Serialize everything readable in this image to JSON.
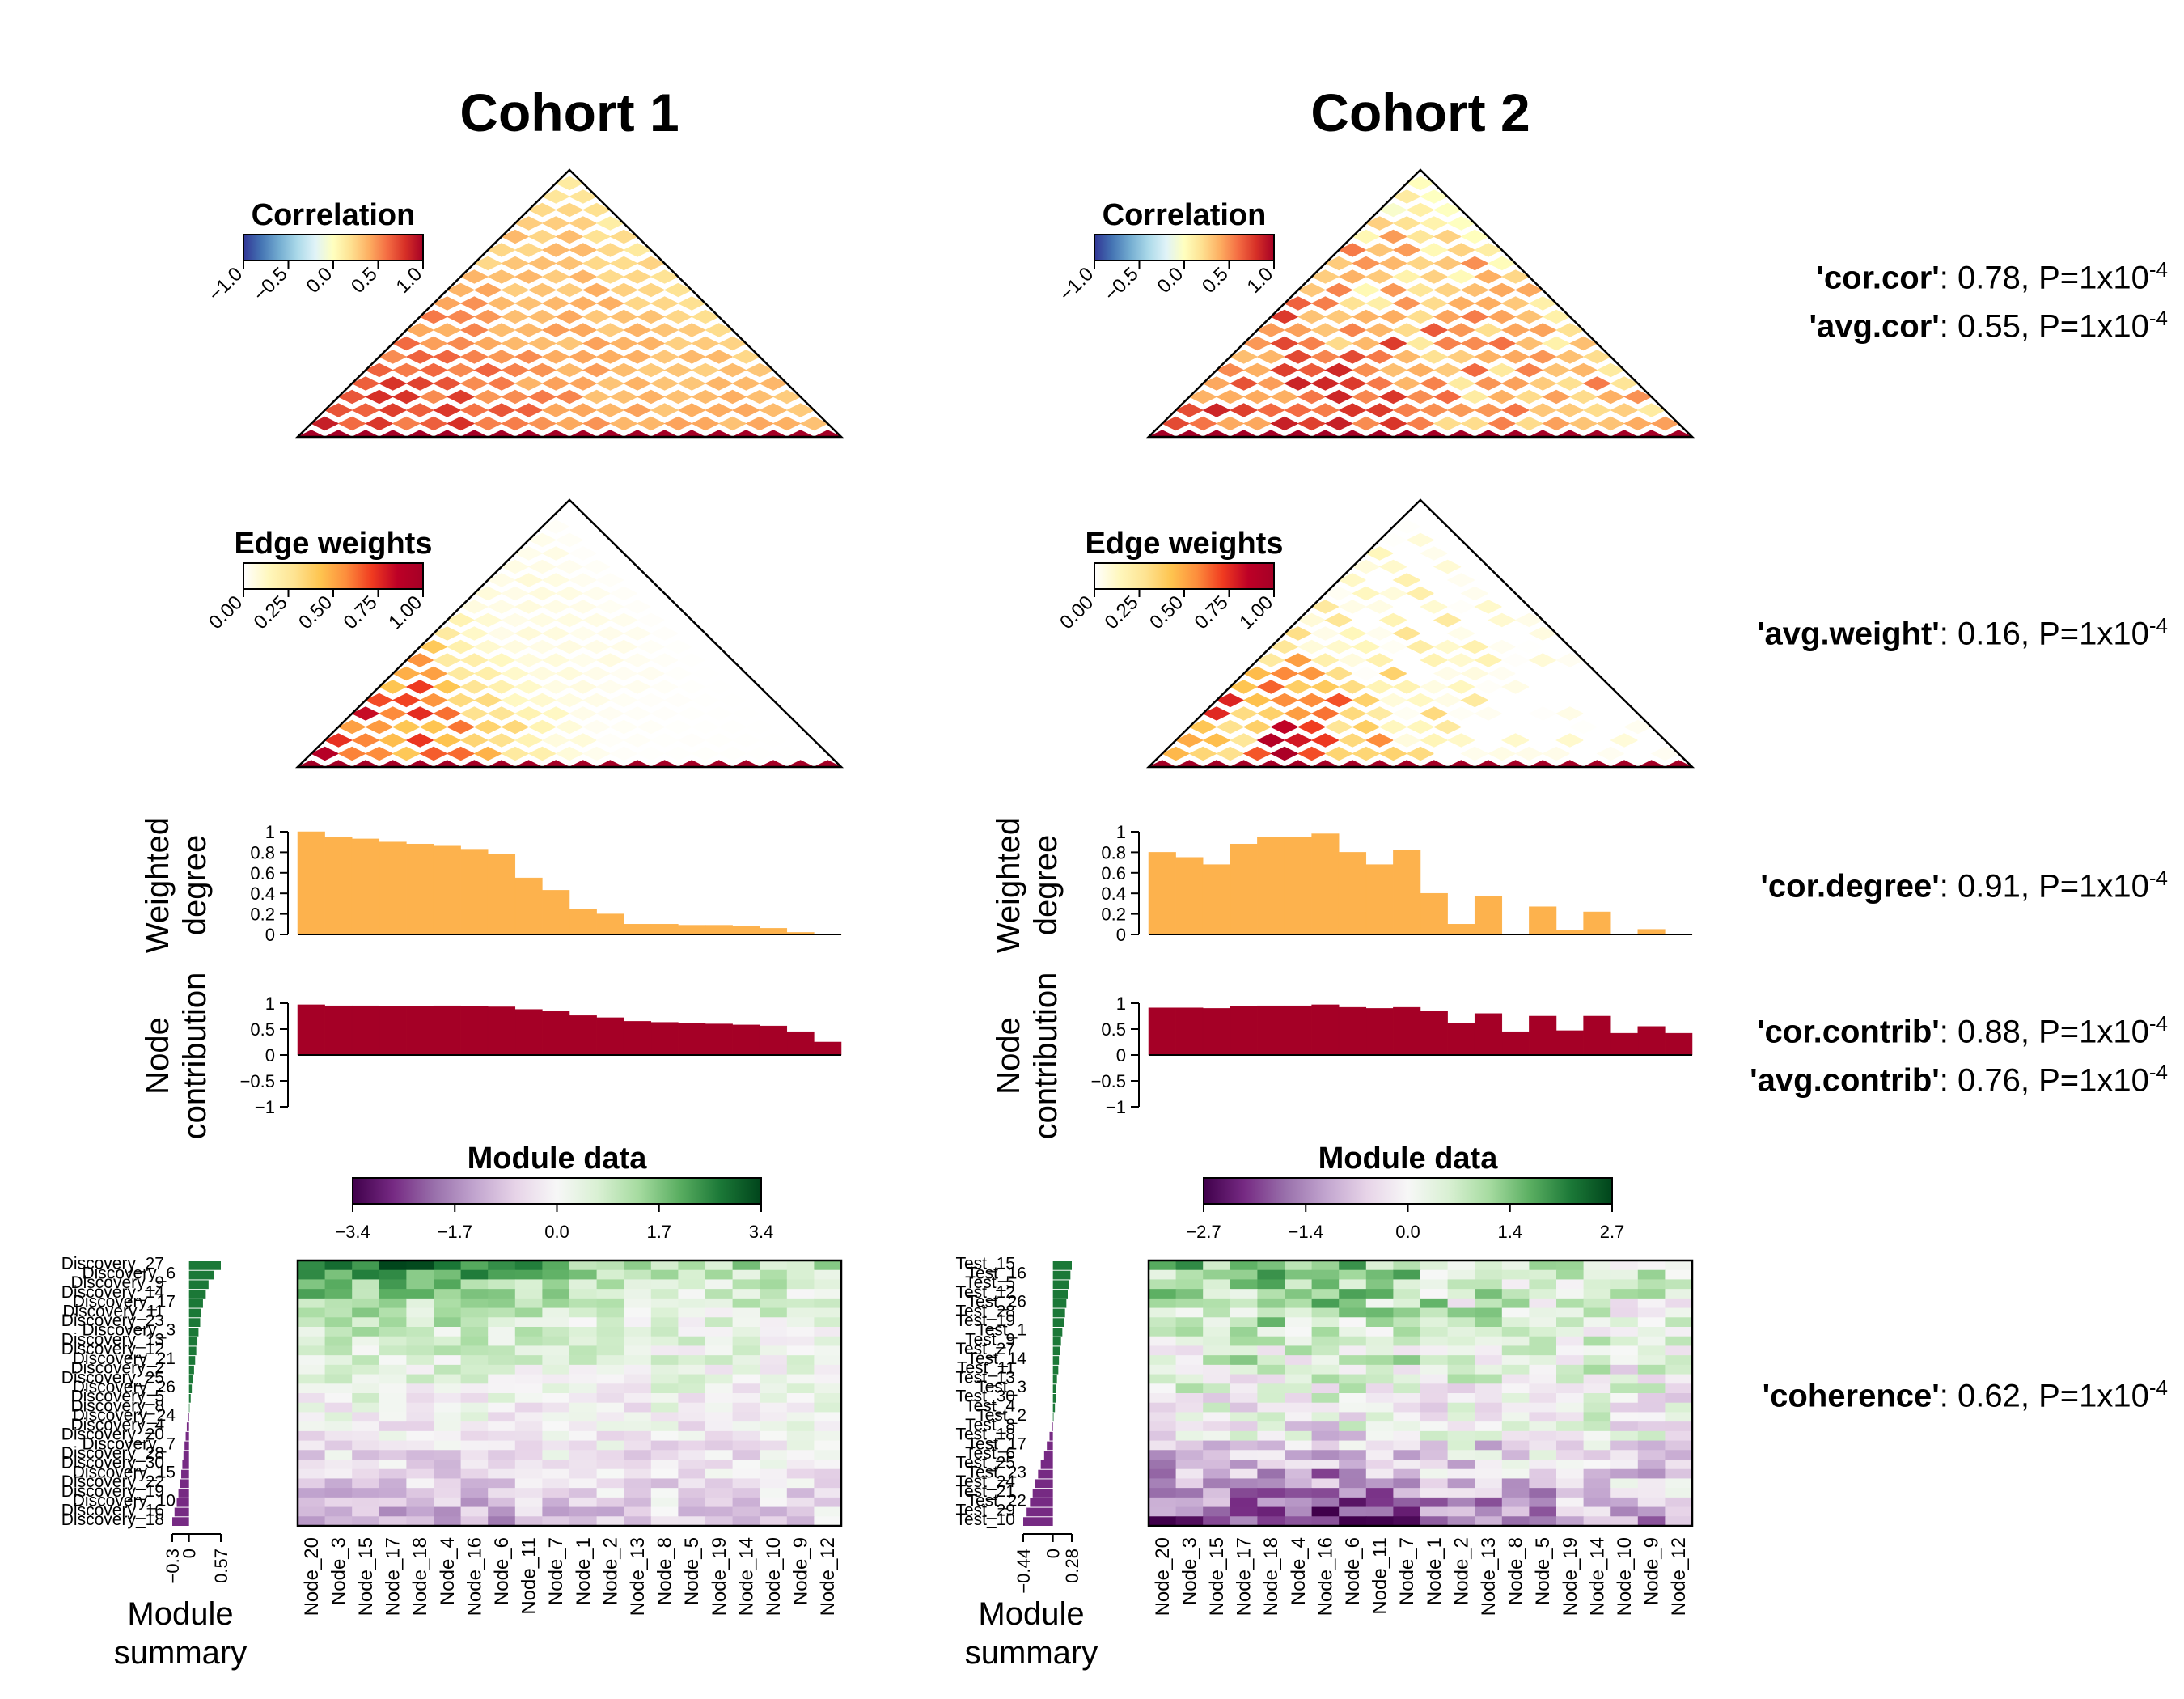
{
  "panels": {
    "titles": [
      "Cohort 1",
      "Cohort 2"
    ],
    "legends": {
      "correlation": {
        "title": "Correlation",
        "ticks": [
          "-1.0",
          "-0.5",
          "0.0",
          "0.5",
          "1.0"
        ]
      },
      "edge_weights": {
        "title": "Edge weights",
        "ticks": [
          "0.00",
          "0.25",
          "0.50",
          "0.75",
          "1.00"
        ]
      },
      "module_data": {
        "title": "Module data",
        "ticks": [
          [
            "-3.4",
            "-1.7",
            "0.0",
            "1.7",
            "3.4"
          ],
          [
            "-2.7",
            "-1.4",
            "0.0",
            "1.4",
            "2.7"
          ]
        ]
      }
    },
    "ylabels": {
      "degree": [
        "Weighted",
        "degree"
      ],
      "contrib": [
        "Node",
        "contribution"
      ],
      "summary": [
        "Module",
        "summary"
      ]
    },
    "degree_ticks": [
      "0",
      "0.2",
      "0.4",
      "0.6",
      "0.8",
      "1"
    ],
    "contrib_ticks": [
      "-1",
      "-0.5",
      "0",
      "0.5",
      "1"
    ],
    "summary_ticks": [
      [
        "-0.3",
        "0",
        "0.57"
      ],
      [
        "-0.44",
        "0",
        "0.28"
      ]
    ]
  },
  "stats": [
    {
      "name": "'cor.cor'",
      "value": ": 0.78, P=1x10",
      "exp": "-4"
    },
    {
      "name": "'avg.cor'",
      "value": ": 0.55, P=1x10",
      "exp": "-4"
    },
    {
      "name": "'avg.weight'",
      "value": ": 0.16, P=1x10",
      "exp": "-4"
    },
    {
      "name": "'cor.degree'",
      "value": ": 0.91, P=1x10",
      "exp": "-4"
    },
    {
      "name": "'cor.contrib'",
      "value": ": 0.88, P=1x10",
      "exp": "-4"
    },
    {
      "name": "'avg.contrib'",
      "value": ": 0.76, P=1x10",
      "exp": "-4"
    },
    {
      "name": "'coherence'",
      "value": ": 0.62, P=1x10",
      "exp": "-4"
    }
  ],
  "colors": {
    "degree_bar": "#FDB24D",
    "contrib_bar": "#A50026",
    "summary_pos": "#1B7837",
    "summary_neg": "#762A83"
  },
  "chart_data": {
    "type": "heatmap",
    "nodes": [
      "Node_20",
      "Node_3",
      "Node_15",
      "Node_17",
      "Node_18",
      "Node_4",
      "Node_16",
      "Node_6",
      "Node_11",
      "Node_7",
      "Node_1",
      "Node_2",
      "Node_13",
      "Node_8",
      "Node_5",
      "Node_19",
      "Node_14",
      "Node_10",
      "Node_9",
      "Node_12"
    ],
    "cohort1": {
      "weighted_degree": [
        1.0,
        0.95,
        0.93,
        0.9,
        0.88,
        0.86,
        0.83,
        0.78,
        0.55,
        0.43,
        0.25,
        0.2,
        0.1,
        0.1,
        0.09,
        0.09,
        0.08,
        0.06,
        0.02,
        0.0
      ],
      "node_contribution": [
        0.97,
        0.95,
        0.95,
        0.94,
        0.94,
        0.95,
        0.94,
        0.93,
        0.88,
        0.84,
        0.76,
        0.72,
        0.65,
        0.63,
        0.62,
        0.6,
        0.58,
        0.56,
        0.45,
        0.25
      ],
      "samples": [
        "Discovery_27",
        "Discovery_6",
        "Discovery_9",
        "Discovery_14",
        "Discovery_17",
        "Discovery_11",
        "Discovery_23",
        "Discovery_3",
        "Discovery_13",
        "Discovery_12",
        "Discovery_21",
        "Discovery_2",
        "Discovery_25",
        "Discovery_26",
        "Discovery_5",
        "Discovery_8",
        "Discovery_24",
        "Discovery_4",
        "Discovery_20",
        "Discovery_7",
        "Discovery_28",
        "Discovery_30",
        "Discovery_15",
        "Discovery_22",
        "Discovery_19",
        "Discovery_10",
        "Discovery_16",
        "Discovery_18"
      ],
      "module_summary": [
        0.57,
        0.45,
        0.35,
        0.3,
        0.25,
        0.22,
        0.2,
        0.17,
        0.15,
        0.13,
        0.11,
        0.09,
        0.07,
        0.05,
        0.03,
        0.01,
        -0.02,
        -0.04,
        -0.06,
        -0.08,
        -0.1,
        -0.12,
        -0.14,
        -0.16,
        -0.19,
        -0.22,
        -0.26,
        -0.3
      ],
      "summary_range": [
        -0.3,
        0.57
      ],
      "data_range": [
        -3.4,
        3.4
      ]
    },
    "cohort2": {
      "weighted_degree": [
        0.8,
        0.75,
        0.68,
        0.88,
        0.95,
        0.95,
        0.98,
        0.8,
        0.68,
        0.82,
        0.4,
        0.1,
        0.37,
        0.0,
        0.27,
        0.04,
        0.22,
        0.0,
        0.05,
        0.0
      ],
      "node_contribution": [
        0.91,
        0.91,
        0.9,
        0.94,
        0.95,
        0.95,
        0.97,
        0.92,
        0.9,
        0.92,
        0.85,
        0.62,
        0.8,
        0.45,
        0.75,
        0.47,
        0.75,
        0.42,
        0.55,
        0.42
      ],
      "samples": [
        "Test_15",
        "Test_16",
        "Test_5",
        "Test_12",
        "Test_26",
        "Test_28",
        "Test_19",
        "Test_1",
        "Test_9",
        "Test_27",
        "Test_14",
        "Test_11",
        "Test_13",
        "Test_3",
        "Test_30",
        "Test_4",
        "Test_2",
        "Test_8",
        "Test_18",
        "Test_17",
        "Test_6",
        "Test_25",
        "Test_23",
        "Test_24",
        "Test_21",
        "Test_22",
        "Test_29",
        "Test_10"
      ],
      "module_summary": [
        0.28,
        0.26,
        0.24,
        0.22,
        0.2,
        0.18,
        0.16,
        0.14,
        0.12,
        0.1,
        0.09,
        0.08,
        0.06,
        0.05,
        0.04,
        0.03,
        0.01,
        -0.01,
        -0.05,
        -0.09,
        -0.13,
        -0.18,
        -0.22,
        -0.26,
        -0.3,
        -0.34,
        -0.39,
        -0.44
      ],
      "summary_range": [
        -0.44,
        0.28
      ],
      "data_range": [
        -2.7,
        2.7
      ]
    }
  }
}
